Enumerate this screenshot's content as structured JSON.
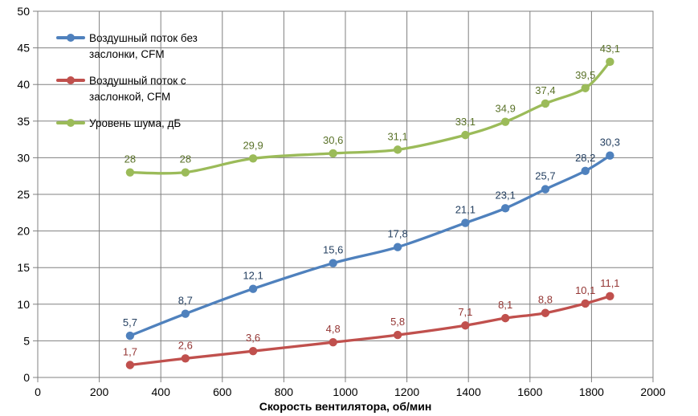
{
  "chart_data": {
    "type": "line",
    "title": "",
    "xlabel": "Скорость вентилятора, об/мин",
    "ylabel": "",
    "xlim": [
      0,
      2000
    ],
    "ylim": [
      0,
      50
    ],
    "xticks": [
      0,
      200,
      400,
      600,
      800,
      1000,
      1200,
      1400,
      1600,
      1800,
      2000
    ],
    "yticks": [
      0,
      5,
      10,
      15,
      20,
      25,
      30,
      35,
      40,
      45,
      50
    ],
    "grid": true,
    "legend_position": "top-left",
    "x": [
      300,
      480,
      700,
      960,
      1170,
      1390,
      1520,
      1650,
      1780,
      1860
    ],
    "series": [
      {
        "name": "Воздушный поток без заслонки, CFM",
        "color": "#4F81BD",
        "label_color": "#254061",
        "values": [
          5.7,
          8.7,
          12.1,
          15.6,
          17.8,
          21.1,
          23.1,
          25.7,
          28.2,
          30.3
        ],
        "labels": [
          "5,7",
          "8,7",
          "12,1",
          "15,6",
          "17,8",
          "21,1",
          "23,1",
          "25,7",
          "28,2",
          "30,3"
        ]
      },
      {
        "name": "Воздушный поток с заслонкой, CFM",
        "color": "#C0504D",
        "label_color": "#943634",
        "values": [
          1.7,
          2.6,
          3.6,
          4.8,
          5.8,
          7.1,
          8.1,
          8.8,
          10.1,
          11.1
        ],
        "labels": [
          "1,7",
          "2,6",
          "3,6",
          "4,8",
          "5,8",
          "7,1",
          "8,1",
          "8,8",
          "10,1",
          "11,1"
        ]
      },
      {
        "name": "Уровень шума, дБ",
        "color": "#9BBB59",
        "label_color": "#5A7229",
        "values": [
          28,
          28,
          29.9,
          30.6,
          31.1,
          33.1,
          34.9,
          37.4,
          39.5,
          43.1
        ],
        "labels": [
          "28",
          "28",
          "29,9",
          "30,6",
          "31,1",
          "33,1",
          "34,9",
          "37,4",
          "39,5",
          "43,1"
        ]
      }
    ],
    "axis_color": "#808080",
    "grid_color": "#808080",
    "tick_label_color": "#000000",
    "background": "#FFFFFF"
  }
}
